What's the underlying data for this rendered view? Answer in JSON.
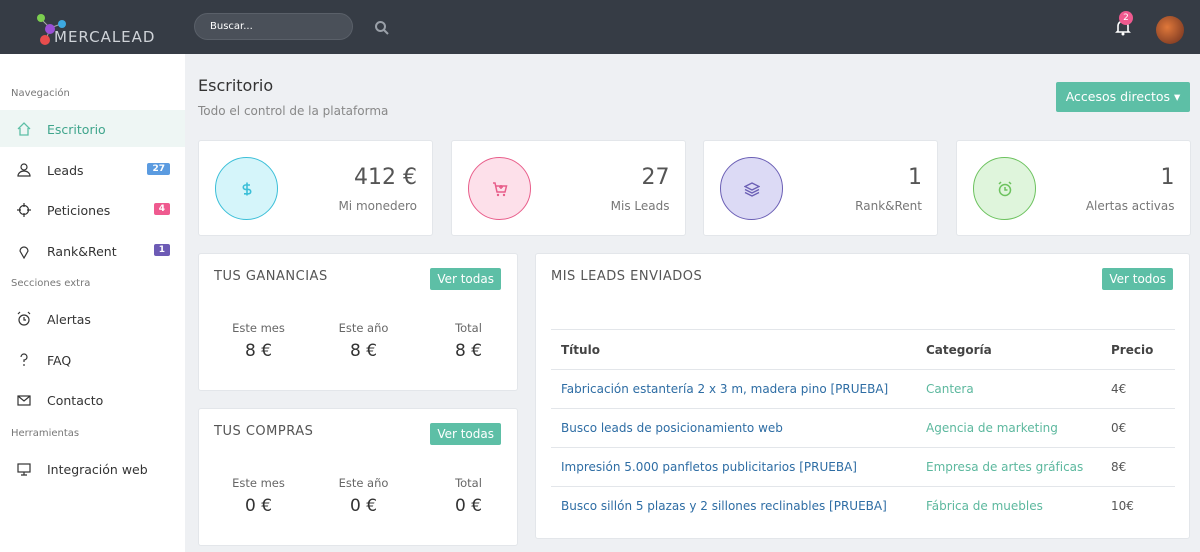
{
  "header": {
    "logo": "MERCALEAD",
    "search_placeholder": "Buscar...",
    "notifications": "2"
  },
  "sidebar": {
    "sections": [
      {
        "title": "Navegación",
        "items": [
          {
            "label": "Escritorio"
          },
          {
            "label": "Leads",
            "badge": "27"
          },
          {
            "label": "Peticiones",
            "badge": "4"
          },
          {
            "label": "Rank&Rent",
            "badge": "1"
          }
        ]
      },
      {
        "title": "Secciones extra",
        "items": [
          {
            "label": "Alertas"
          },
          {
            "label": "FAQ"
          },
          {
            "label": "Contacto"
          }
        ]
      },
      {
        "title": "Herramientas",
        "items": [
          {
            "label": "Integración web"
          }
        ]
      }
    ]
  },
  "page": {
    "title": "Escritorio",
    "subtitle": "Todo el control de la plataforma",
    "action": "Accesos directos"
  },
  "stats": [
    {
      "value": "412 €",
      "label": "Mi monedero"
    },
    {
      "value": "27",
      "label": "Mis Leads"
    },
    {
      "value": "1",
      "label": "Rank&Rent"
    },
    {
      "value": "1",
      "label": "Alertas activas"
    }
  ],
  "earnings": {
    "title": "TUS GANANCIAS",
    "button": "Ver todas",
    "columns": [
      {
        "label": "Este mes",
        "value": "8 €"
      },
      {
        "label": "Este año",
        "value": "8 €"
      },
      {
        "label": "Total",
        "value": "8 €"
      }
    ]
  },
  "purchases": {
    "title": "TUS COMPRAS",
    "button": "Ver todas",
    "columns": [
      {
        "label": "Este mes",
        "value": "0 €"
      },
      {
        "label": "Este año",
        "value": "0 €"
      },
      {
        "label": "Total",
        "value": "0 €"
      }
    ]
  },
  "leads": {
    "title": "MIS LEADS ENVIADOS",
    "button": "Ver todos",
    "table": {
      "header": [
        "Título",
        "Categoría",
        "Precio"
      ],
      "rows": [
        [
          "Fabricación estantería 2 x 3 m, madera pino [PRUEBA]",
          "Cantera",
          "4€"
        ],
        [
          "Busco leads de posicionamiento web",
          "Agencia de marketing",
          "0€"
        ],
        [
          "Impresión 5.000 panfletos publicitarios [PRUEBA]",
          "Empresa de artes gráficas",
          "8€"
        ],
        [
          "Busco sillón 5 plazas y 2 sillones reclinables [PRUEBA]",
          "Fábrica de muebles",
          "10€"
        ]
      ]
    }
  }
}
